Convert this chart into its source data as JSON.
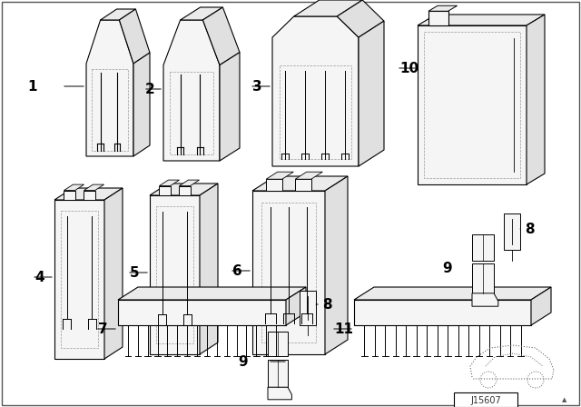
{
  "bg_color": "#ffffff",
  "line_color": "#000000",
  "part_face": "#f5f5f5",
  "part_side": "#e0e0e0",
  "part_top": "#ebebeb",
  "dot_color": "#888888",
  "label_color": "#000000",
  "label_fs": 11,
  "small_fs": 9,
  "diagram_code": "J15607",
  "border_color": "#000000"
}
